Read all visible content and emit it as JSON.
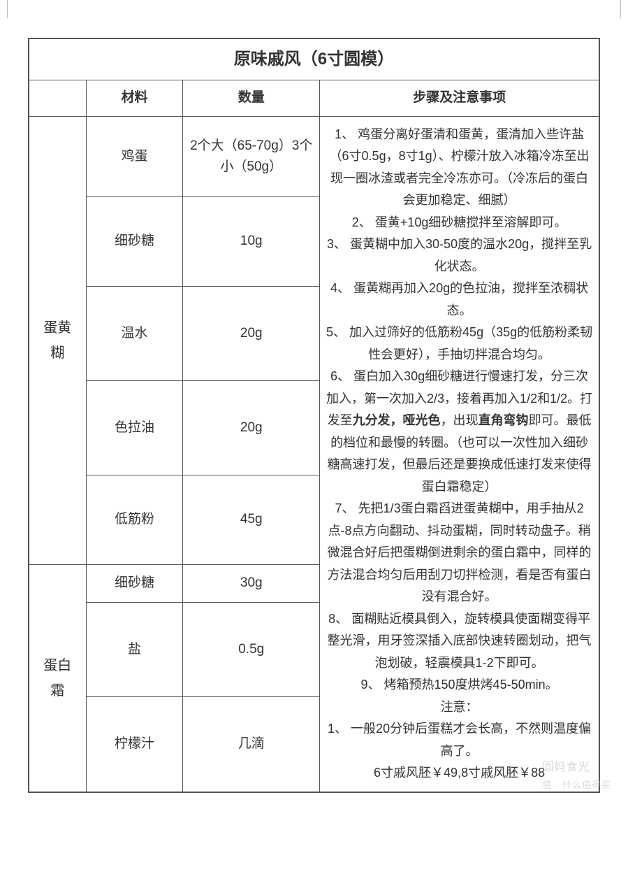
{
  "table": {
    "title": "原味戚风（6寸圆模）",
    "column_widths_pct": [
      10,
      17,
      24,
      49
    ],
    "border_color": "#555555",
    "background_color": "#ffffff",
    "text_color": "#333333",
    "headers": {
      "group": "",
      "material": "材料",
      "amount": "数量",
      "steps": "步骤及注意事项"
    },
    "groups": [
      {
        "label_lines": [
          "蛋黄",
          "糊"
        ],
        "rows": [
          {
            "material": "鸡蛋",
            "amount": "2个大（65-70g）3个小（50g）"
          },
          {
            "material": "细砂糖",
            "amount": "10g"
          },
          {
            "material": "温水",
            "amount": "20g"
          },
          {
            "material": "色拉油",
            "amount": "20g"
          },
          {
            "material": "低筋粉",
            "amount": "45g"
          }
        ]
      },
      {
        "label_lines": [
          "蛋白",
          "霜"
        ],
        "rows": [
          {
            "material": "细砂糖",
            "amount": "30g"
          },
          {
            "material": "盐",
            "amount": "0.5g"
          },
          {
            "material": "柠檬汁",
            "amount": "几滴"
          }
        ]
      }
    ],
    "steps_segments": [
      {
        "text": "1、 鸡蛋分离好蛋清和蛋黄，蛋清加入些许盐（6寸0.5g，8寸1g）、柠檬汁放入冰箱冷冻至出现一圈冰渣或者完全冷冻亦可。（冷冻后的蛋白会更加稳定、细腻）"
      },
      {
        "text": "2、 蛋黄+10g细砂糖搅拌至溶解即可。"
      },
      {
        "text": "3、 蛋黄糊中加入30-50度的温水20g，搅拌至乳化状态。"
      },
      {
        "text": "4、 蛋黄糊再加入20g的色拉油，搅拌至浓稠状态。"
      },
      {
        "text": "5、 加入过筛好的低筋粉45g（35g的低筋粉柔韧性会更好），手抽切拌混合均匀。"
      },
      {
        "parts": [
          {
            "text": "6、 蛋白加入30g细砂糖进行慢速打发，分三次加入，第一次加入2/3，接着再加入1/2和1/2。打发至"
          },
          {
            "text": "九分发，哑光色",
            "bold": true
          },
          {
            "text": "，出现"
          },
          {
            "text": "直角弯钩",
            "bold": true
          },
          {
            "text": "即可。最低的档位和最慢的转圈。（也可以一次性加入细砂糖高速打发，但最后还是要换成低速打发来使得蛋白霜稳定）"
          }
        ]
      },
      {
        "text": "7、 先把1/3蛋白霜舀进蛋黄糊中，用手抽从2点-8点方向翻动、抖动蛋糊，同时转动盘子。稍微混合好后把蛋糊倒进剩余的蛋白霜中，同样的方法混合均匀后用刮刀切拌检测，看是否有蛋白没有混合好。"
      },
      {
        "text": "8、 面糊贴近模具倒入，旋转模具使面糊变得平整光滑，用牙签深插入底部快速转圈划动，把气泡划破，轻震模具1-2下即可。"
      },
      {
        "text": "9、 烤箱预热150度烘烤45-50min。"
      },
      {
        "text": "注意："
      },
      {
        "text": "1、 一般20分钟后蛋糕才会长高，不然则温度偏高了。"
      },
      {
        "text": "6寸戚风胚￥49,8寸戚风胚￥88"
      }
    ]
  },
  "watermark": {
    "line1": "圆妈食光",
    "line2": "值 · 什么值得买"
  }
}
